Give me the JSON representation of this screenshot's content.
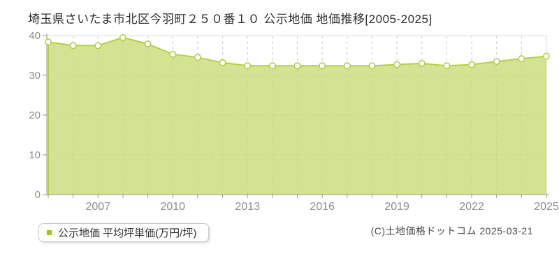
{
  "title": "埼玉県さいたま市北区今羽町２５０番１０ 公示地価 地価推移[2005-2025]",
  "legend": {
    "label": "公示地価 平均坪単価(万円/坪)",
    "marker_color": "#a3c614"
  },
  "copyright": "(C)土地価格ドットコム 2025-03-21",
  "colors": {
    "area_fill": "#c9dc78",
    "area_fill_opacity": 0.8,
    "line": "#b2d04a",
    "marker_fill": "#ffffff",
    "marker_stroke": "#b2d04a",
    "grid": "#cccccc",
    "plot_border": "#dddddd",
    "axis": "#999999",
    "axis_label": "#8f8f8f"
  },
  "chart_data": {
    "type": "area",
    "title": "埼玉県さいたま市北区今羽町２５０番１０ 公示地価 地価推移[2005-2025]",
    "x": [
      2005,
      2006,
      2007,
      2008,
      2009,
      2010,
      2011,
      2012,
      2013,
      2014,
      2015,
      2016,
      2017,
      2018,
      2019,
      2020,
      2021,
      2022,
      2023,
      2024,
      2025
    ],
    "values": [
      38.4,
      37.5,
      37.5,
      39.5,
      37.9,
      35.3,
      34.5,
      33.2,
      32.4,
      32.4,
      32.4,
      32.4,
      32.4,
      32.4,
      32.7,
      33.0,
      32.4,
      32.7,
      33.5,
      34.2,
      34.8
    ],
    "series_name": "公示地価 平均坪単価(万円/坪)",
    "xlabel": "",
    "ylabel": "",
    "ylim": [
      0,
      40
    ],
    "yticks": [
      0,
      10,
      20,
      30,
      40
    ],
    "xticks": [
      2007,
      2010,
      2013,
      2016,
      2019,
      2022,
      2025
    ],
    "grid": "dashed",
    "legend_position": "bottom-left"
  }
}
